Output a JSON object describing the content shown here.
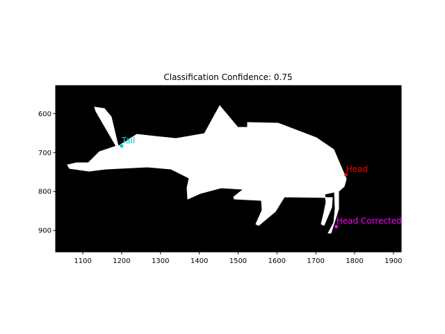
{
  "chart_data": {
    "type": "scatter",
    "title": "Classification Confidence: 0.75",
    "xlabel": "",
    "ylabel": "",
    "xlim": [
      1030,
      1920
    ],
    "ylim": [
      955,
      528
    ],
    "y_inverted": true,
    "x_ticks": [
      1100,
      1200,
      1300,
      1400,
      1500,
      1600,
      1700,
      1800,
      1900
    ],
    "y_ticks": [
      600,
      700,
      800,
      900
    ],
    "grid": false,
    "background": "image mask",
    "background_colors": {
      "mask_background": "#000000",
      "fish_silhouette": "#ffffff"
    },
    "points": [
      {
        "label": "Tail",
        "x": 1200,
        "y": 683,
        "color": "#00c8c8"
      },
      {
        "label": "Head",
        "x": 1778,
        "y": 757,
        "color": "#ff0000"
      },
      {
        "label": "Head Corrected",
        "x": 1753,
        "y": 890,
        "color": "#ff00ff"
      }
    ]
  }
}
